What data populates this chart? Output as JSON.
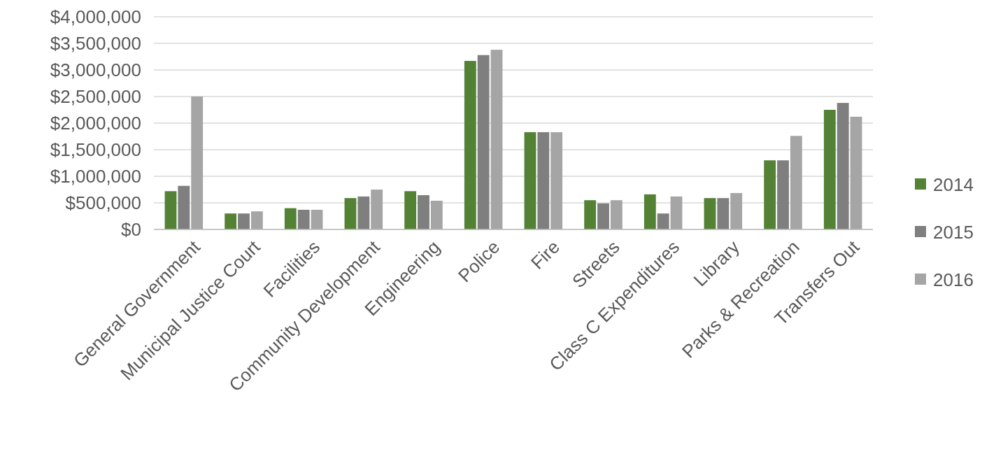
{
  "chart_data": {
    "type": "bar",
    "categories": [
      "General Government",
      "Municipal Justice Court",
      "Facilities",
      "Community Development",
      "Engineering",
      "Police",
      "Fire",
      "Streets",
      "Class C Expenditures",
      "Library",
      "Parks & Recreation",
      "Transfers Out"
    ],
    "series": [
      {
        "name": "2014",
        "color": "#548235",
        "values": [
          720000,
          300000,
          400000,
          590000,
          720000,
          3170000,
          1830000,
          550000,
          660000,
          590000,
          1300000,
          2250000
        ]
      },
      {
        "name": "2015",
        "color": "#7f7f7f",
        "values": [
          820000,
          300000,
          370000,
          620000,
          645000,
          3280000,
          1830000,
          490000,
          300000,
          590000,
          1300000,
          2380000
        ]
      },
      {
        "name": "2016",
        "color": "#a5a5a5",
        "values": [
          2500000,
          340000,
          370000,
          750000,
          540000,
          3380000,
          1830000,
          550000,
          620000,
          685000,
          1760000,
          2120000
        ]
      }
    ],
    "ylim": [
      0,
      4000000
    ],
    "yticks": [
      {
        "value": 0,
        "label": "$0"
      },
      {
        "value": 500000,
        "label": "$500,000"
      },
      {
        "value": 1000000,
        "label": "$1,000,000"
      },
      {
        "value": 1500000,
        "label": "$1,500,000"
      },
      {
        "value": 2000000,
        "label": "$2,000,000"
      },
      {
        "value": 2500000,
        "label": "$2,500,000"
      },
      {
        "value": 3000000,
        "label": "$3,000,000"
      },
      {
        "value": 3500000,
        "label": "$3,500,000"
      },
      {
        "value": 4000000,
        "label": "$4,000,000"
      }
    ],
    "grid": "y",
    "legend": "right"
  }
}
